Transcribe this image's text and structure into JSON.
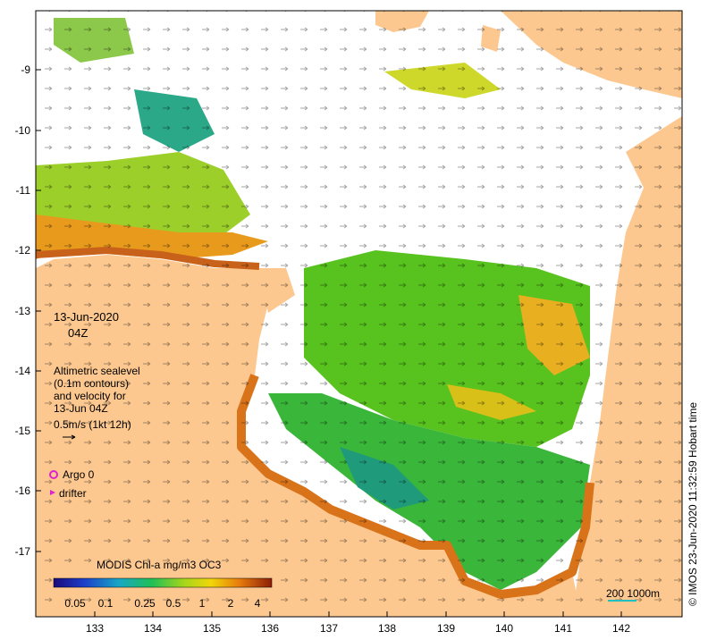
{
  "map": {
    "y_axis_labels": [
      "-9",
      "-10",
      "-11",
      "-12",
      "-13",
      "-14",
      "-15",
      "-16",
      "-17"
    ],
    "x_axis_labels": [
      "133",
      "134",
      "135",
      "136",
      "137",
      "138",
      "139",
      "140",
      "141",
      "142"
    ],
    "land_color": "#fcc890",
    "ocean_nodata_color": "#ffffff"
  },
  "annotations": {
    "date": "13-Jun-2020",
    "time": "04Z",
    "explanation_lines": [
      "Altimetric sealevel",
      "(0.1m contours)",
      "and velocity for",
      "13-Jun 04Z"
    ],
    "arrow_scale_label": "0.5m/s (1kt 12h)",
    "argo_label": "Argo 0",
    "drifter_label": "drifter"
  },
  "colorbar": {
    "title": "MODIS Chl-a mg/m3 OC3",
    "ticks": [
      "0.05",
      "0.1",
      "0.25",
      "0.5",
      "1",
      "2",
      "4"
    ]
  },
  "scale_bar_label": "200  1000m",
  "credit": "© IMOS 23-Jun-2020 11:32:59 Hobart time"
}
